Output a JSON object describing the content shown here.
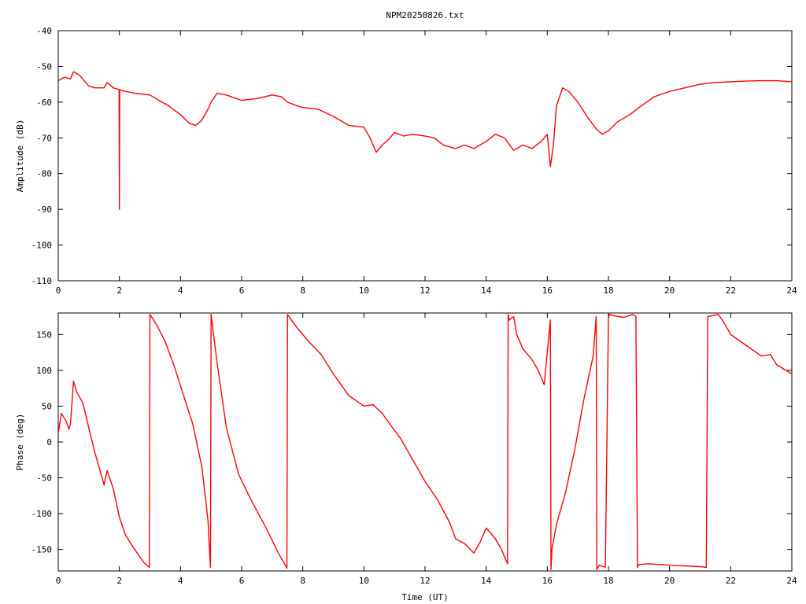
{
  "title": "NPM20250826.txt",
  "colors": {
    "series": "#ff0000",
    "axis": "#000000",
    "background": "#ffffff"
  },
  "chart_data": [
    {
      "type": "line",
      "name": "amplitude-panel",
      "xlabel": "",
      "ylabel": "Amplitude (dB)",
      "xlim": [
        0,
        24
      ],
      "ylim": [
        -110,
        -40
      ],
      "x_ticks": [
        0,
        2,
        4,
        6,
        8,
        10,
        12,
        14,
        16,
        18,
        20,
        22,
        24
      ],
      "y_ticks": [
        -110,
        -100,
        -90,
        -80,
        -70,
        -60,
        -50,
        -40
      ],
      "grid": false,
      "series": [
        {
          "x": [
            0,
            0.2,
            0.4,
            0.5,
            0.7,
            0.9,
            1.0,
            1.2,
            1.5,
            1.6,
            1.8,
            2.0,
            2.2,
            2.5,
            3.0,
            3.3,
            3.6,
            4.0,
            4.3,
            4.5,
            4.7,
            4.9,
            5.0,
            5.2,
            5.5,
            6.0,
            6.5,
            7.0,
            7.3,
            7.5,
            7.8,
            8.0,
            8.5,
            9.0,
            9.5,
            10.0,
            10.2,
            10.4,
            10.6,
            10.8,
            11.0,
            11.3,
            11.6,
            12.0,
            12.3,
            12.6,
            13.0,
            13.3,
            13.6,
            14.0,
            14.3,
            14.6,
            14.9,
            15.2,
            15.5,
            15.8,
            16.0,
            16.1,
            16.2,
            16.3,
            16.5,
            16.7,
            17.0,
            17.3,
            17.6,
            17.8,
            18.0,
            18.3,
            18.7,
            19.0,
            19.5,
            20.0,
            20.5,
            21.0,
            21.5,
            22.0,
            22.5,
            23.0,
            23.5,
            24.0
          ],
          "y": [
            -54,
            -53,
            -53.5,
            -51.5,
            -52.5,
            -54.5,
            -55.5,
            -56,
            -56,
            -54.5,
            -56,
            -56.5,
            -57,
            -57.5,
            -58,
            -59.5,
            -61,
            -63.5,
            -66,
            -66.5,
            -65,
            -62,
            -60,
            -57.5,
            -58,
            -59.5,
            -59,
            -58,
            -58.5,
            -60,
            -61,
            -61.5,
            -62,
            -64,
            -66.5,
            -67,
            -70,
            -74,
            -72,
            -70.5,
            -68.5,
            -69.5,
            -69,
            -69.5,
            -70,
            -72,
            -73,
            -72,
            -73,
            -71,
            -69,
            -70,
            -73.5,
            -72,
            -73,
            -71,
            -69,
            -78,
            -72,
            -61,
            -56,
            -57,
            -60,
            -64,
            -67.5,
            -69,
            -68,
            -65.5,
            -63.5,
            -61.5,
            -58.5,
            -57,
            -56,
            -55,
            -54.5,
            -54.3,
            -54.1,
            -54,
            -54,
            -54.3
          ]
        },
        {
          "x": [
            1.99,
            2.0,
            2.01
          ],
          "y": [
            -56.5,
            -90,
            -56.5
          ]
        }
      ]
    },
    {
      "type": "line",
      "name": "phase-panel",
      "xlabel": "Time (UT)",
      "ylabel": "Phase (deg)",
      "xlim": [
        0,
        24
      ],
      "ylim": [
        -180,
        180
      ],
      "x_ticks": [
        0,
        2,
        4,
        6,
        8,
        10,
        12,
        14,
        16,
        18,
        20,
        22,
        24
      ],
      "y_ticks": [
        -150,
        -100,
        -50,
        0,
        50,
        100,
        150
      ],
      "grid": false,
      "series": [
        {
          "x": [
            0,
            0.1,
            0.25,
            0.35,
            0.4,
            0.5,
            0.6,
            0.8,
            1.0,
            1.2,
            1.4,
            1.5,
            1.6,
            1.8,
            2.0,
            2.2,
            2.5,
            2.8,
            2.98,
            3.0,
            3.2,
            3.5,
            3.8,
            4.1,
            4.4,
            4.7,
            4.9,
            4.98,
            5.0,
            5.2,
            5.5,
            5.9,
            6.3,
            6.8,
            7.2,
            7.48,
            7.5,
            7.8,
            8.2,
            8.6,
            9.0,
            9.5,
            10.0,
            10.3,
            10.6,
            10.9,
            11.2,
            11.6,
            12.0,
            12.4,
            12.8,
            13.0,
            13.3,
            13.6,
            13.8,
            14.0,
            14.3,
            14.5,
            14.7,
            14.72,
            14.75,
            14.9,
            15.0,
            15.2,
            15.5,
            15.7,
            15.9,
            16.1,
            16.12,
            16.15,
            16.3,
            16.6,
            16.9,
            17.2,
            17.5,
            17.6,
            17.62,
            17.7,
            17.9,
            18.0,
            18.03,
            18.2,
            18.5,
            18.8,
            18.9,
            18.95,
            19.0,
            19.3,
            19.7,
            20.0,
            20.5,
            21.0,
            21.2,
            21.25,
            21.6,
            21.8,
            22.0,
            22.5,
            23.0,
            23.3,
            23.5,
            24.0
          ],
          "y": [
            12,
            40,
            30,
            18,
            25,
            85,
            70,
            55,
            20,
            -15,
            -45,
            -60,
            -40,
            -65,
            -105,
            -130,
            -150,
            -168,
            -175,
            178,
            165,
            140,
            105,
            65,
            25,
            -35,
            -110,
            -175,
            178,
            110,
            20,
            -45,
            -80,
            -120,
            -155,
            -176,
            178,
            160,
            140,
            122,
            95,
            65,
            50,
            52,
            40,
            22,
            5,
            -25,
            -55,
            -80,
            -112,
            -135,
            -142,
            -155,
            -140,
            -120,
            -135,
            -150,
            -170,
            178,
            170,
            175,
            150,
            130,
            115,
            100,
            80,
            170,
            -178,
            -150,
            -115,
            -70,
            -10,
            60,
            120,
            175,
            -178,
            -172,
            -175,
            172,
            178,
            176,
            174,
            178,
            175,
            -175,
            -171,
            -170,
            -171,
            -172,
            -173,
            -174,
            -175,
            175,
            178,
            165,
            150,
            135,
            120,
            122,
            108,
            95
          ]
        }
      ]
    }
  ]
}
